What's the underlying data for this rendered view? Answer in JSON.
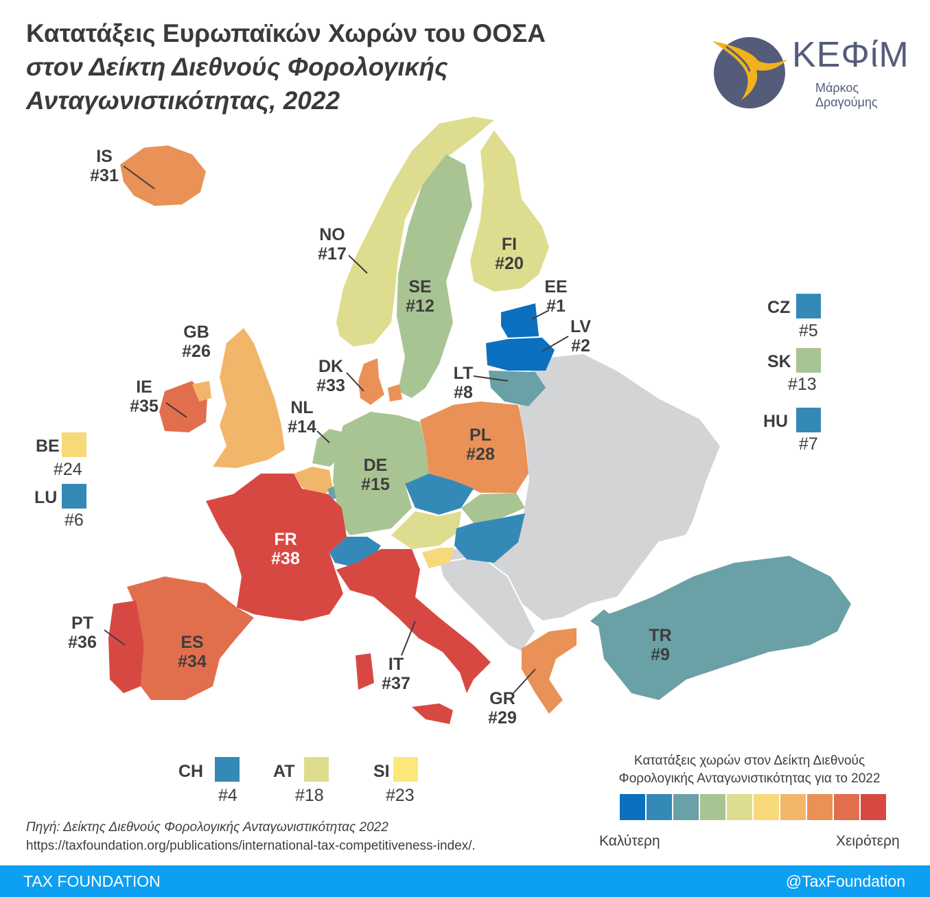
{
  "title_lines": [
    "Κατατάξεις Ευρωπαϊκών Χωρών του ΟΟΣΑ",
    "στον Δείκτη Διεθνούς Φορολογικής",
    "Ανταγωνιστικότητας, 2022"
  ],
  "logo": {
    "brand": "ΚΕΦίΜ",
    "subtitle": "Μάρκος Δραγούμης"
  },
  "colors": {
    "rank_scale": [
      "#0a70bf",
      "#3589b6",
      "#6aa1a6",
      "#a9c493",
      "#dedd8f",
      "#f7d97a",
      "#f2b66a",
      "#ea9157",
      "#e16f4d",
      "#d84843"
    ],
    "non_member": "#d3d4d6",
    "footer": "#0d9ff1"
  },
  "countries": [
    {
      "code": "EE",
      "rank": "#1"
    },
    {
      "code": "LV",
      "rank": "#2"
    },
    {
      "code": "CH",
      "rank": "#4"
    },
    {
      "code": "CZ",
      "rank": "#5"
    },
    {
      "code": "LU",
      "rank": "#6"
    },
    {
      "code": "HU",
      "rank": "#7"
    },
    {
      "code": "LT",
      "rank": "#8"
    },
    {
      "code": "TR",
      "rank": "#9"
    },
    {
      "code": "SE",
      "rank": "#12"
    },
    {
      "code": "SK",
      "rank": "#13"
    },
    {
      "code": "NL",
      "rank": "#14"
    },
    {
      "code": "DE",
      "rank": "#15"
    },
    {
      "code": "NO",
      "rank": "#17"
    },
    {
      "code": "AT",
      "rank": "#18"
    },
    {
      "code": "FI",
      "rank": "#20"
    },
    {
      "code": "SI",
      "rank": "#23"
    },
    {
      "code": "BE",
      "rank": "#24"
    },
    {
      "code": "GB",
      "rank": "#26"
    },
    {
      "code": "PL",
      "rank": "#28"
    },
    {
      "code": "GR",
      "rank": "#29"
    },
    {
      "code": "IS",
      "rank": "#31"
    },
    {
      "code": "DK",
      "rank": "#33"
    },
    {
      "code": "ES",
      "rank": "#34"
    },
    {
      "code": "IE",
      "rank": "#35"
    },
    {
      "code": "PT",
      "rank": "#36"
    },
    {
      "code": "IT",
      "rank": "#37"
    },
    {
      "code": "FR",
      "rank": "#38"
    }
  ],
  "legend": {
    "title_lines": [
      "Κατατάξεις χωρών στον Δείκτη Διεθνούς",
      "Φορολογικής Ανταγωνιστικότητας για το 2022"
    ],
    "low_label": "Καλύτερη",
    "high_label": "Χειρότερη"
  },
  "source": {
    "line1": "Πηγή: Δείκτης Διεθνούς Φορολογικής Ανταγωνιστικότητας 2022",
    "line2": "https://taxfoundation.org/publications/international-tax-competitiveness-index/."
  },
  "footer": {
    "left": "TAX FOUNDATION",
    "right": "@TaxFoundation"
  }
}
